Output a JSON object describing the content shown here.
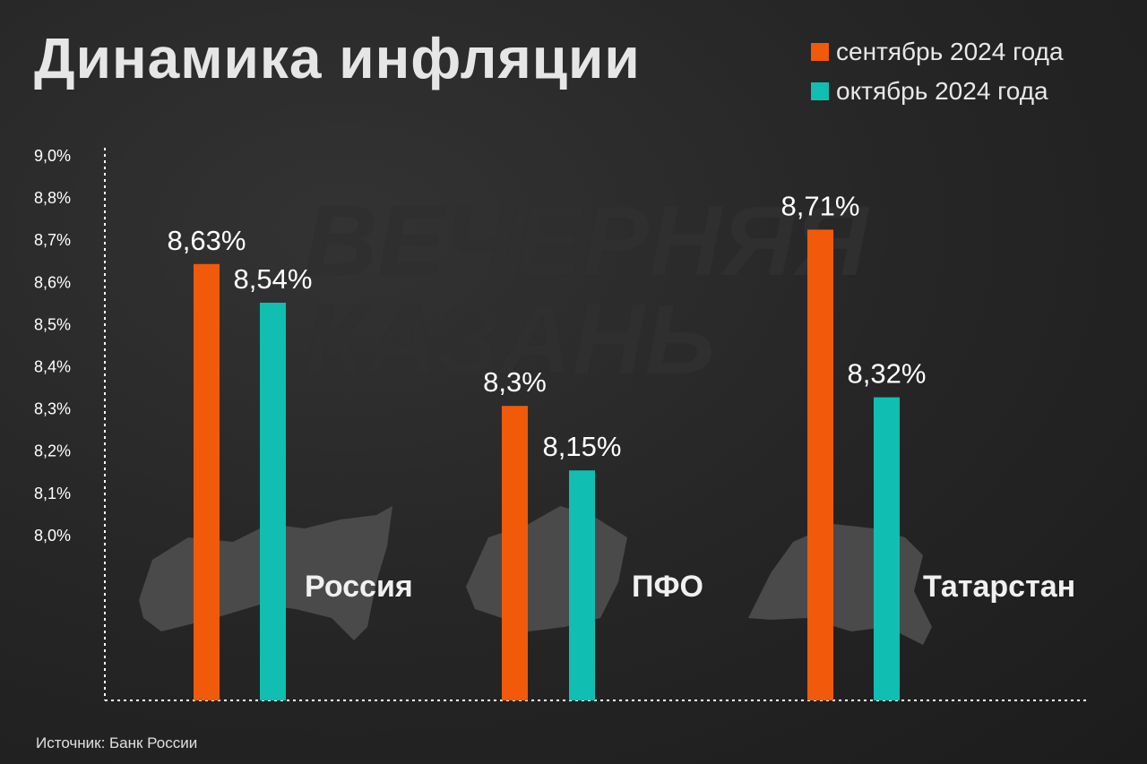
{
  "title": "Динамика инфляции",
  "watermark": [
    "ВЕЧЕРНЯЯ",
    "КАЗАНЬ"
  ],
  "source": "Источник: Банк России",
  "colors": {
    "september": "#f05a0a",
    "october": "#10bfb1",
    "map": "#4a4a4a",
    "axis": "#ffffff"
  },
  "chart_data": {
    "type": "bar",
    "title": "Динамика инфляции",
    "categories": [
      "Россия",
      "ПФО",
      "Татарстан"
    ],
    "series": [
      {
        "name": "сентябрь 2024 года",
        "values": [
          8.63,
          8.3,
          8.71
        ],
        "labels": [
          "8,63%",
          "8,3%",
          "8,71%"
        ]
      },
      {
        "name": "октябрь 2024 года",
        "values": [
          8.54,
          8.15,
          8.32
        ],
        "labels": [
          "8,54%",
          "8,15%",
          "8,32%"
        ]
      }
    ],
    "y_tick_labels": [
      "9,0%",
      "8,8%",
      "8,7%",
      "8,6%",
      "8,5%",
      "8,4%",
      "8,3%",
      "8,2%",
      "8,1%",
      "8,0%"
    ],
    "legend_position": "top-right",
    "grid": false,
    "xlabel": "",
    "ylabel": ""
  }
}
